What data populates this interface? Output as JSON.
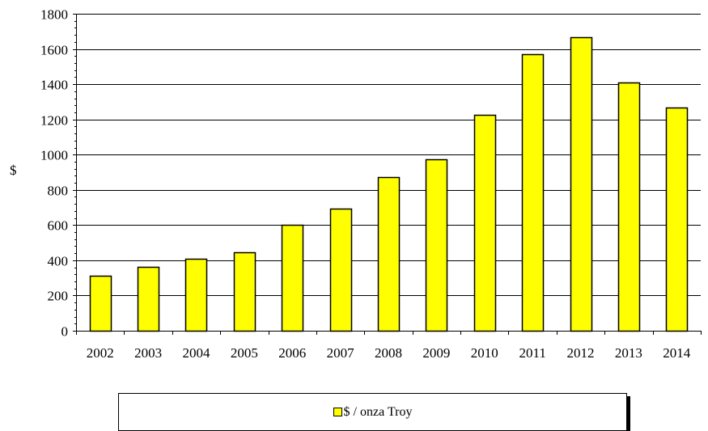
{
  "chart_data": {
    "type": "bar",
    "categories": [
      "2002",
      "2003",
      "2004",
      "2005",
      "2006",
      "2007",
      "2008",
      "2009",
      "2010",
      "2011",
      "2012",
      "2013",
      "2014"
    ],
    "series": [
      {
        "name": "$ / onza Troy",
        "values": [
          310,
          363,
          409,
          444,
          603,
          695,
          872,
          972,
          1225,
          1572,
          1669,
          1411,
          1266
        ]
      }
    ],
    "title": "",
    "xlabel": "",
    "ylabel": "$",
    "ylim": [
      0,
      1800
    ],
    "yticks": [
      0,
      200,
      400,
      600,
      800,
      1000,
      1200,
      1400,
      1600,
      1800
    ],
    "grid": true,
    "legend_position": "bottom",
    "colors": {
      "bar_fill": "#ffff00",
      "bar_stroke": "#000000",
      "grid": "#000000"
    }
  }
}
